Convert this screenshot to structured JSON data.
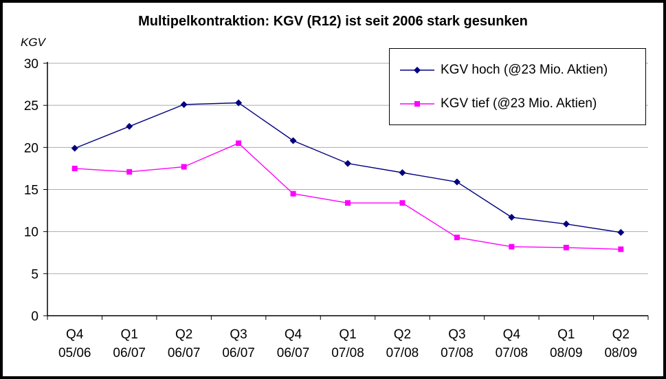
{
  "title": "Multipelkontraktion: KGV (R12) ist seit 2006 stark gesunken",
  "y_axis_unit": "KGV",
  "chart_data": {
    "type": "line",
    "title": "Multipelkontraktion: KGV (R12) ist seit 2006 stark gesunken",
    "ylabel": "KGV",
    "ylim": [
      0,
      30
    ],
    "ytick_step": 5,
    "grid": true,
    "grid_color": "#ababab",
    "axis_color": "#000000",
    "legend_position": "top-right",
    "categories": [
      {
        "line1": "Q4",
        "line2": "05/06"
      },
      {
        "line1": "Q1",
        "line2": "06/07"
      },
      {
        "line1": "Q2",
        "line2": "06/07"
      },
      {
        "line1": "Q3",
        "line2": "06/07"
      },
      {
        "line1": "Q4",
        "line2": "06/07"
      },
      {
        "line1": "Q1",
        "line2": "07/08"
      },
      {
        "line1": "Q2",
        "line2": "07/08"
      },
      {
        "line1": "Q3",
        "line2": "07/08"
      },
      {
        "line1": "Q4",
        "line2": "07/08"
      },
      {
        "line1": "Q1",
        "line2": "08/09"
      },
      {
        "line1": "Q2",
        "line2": "08/09"
      }
    ],
    "series": [
      {
        "name": "KGV hoch (@23 Mio. Aktien)",
        "color": "#000080",
        "marker": "diamond",
        "values": [
          19.9,
          22.5,
          25.1,
          25.3,
          20.8,
          18.1,
          17.0,
          15.9,
          11.7,
          10.9,
          9.9
        ]
      },
      {
        "name": "KGV tief (@23 Mio. Aktien)",
        "color": "#ff00ff",
        "marker": "square",
        "values": [
          17.5,
          17.1,
          17.7,
          20.5,
          14.5,
          13.4,
          13.4,
          9.3,
          8.2,
          8.1,
          7.9
        ]
      }
    ]
  }
}
